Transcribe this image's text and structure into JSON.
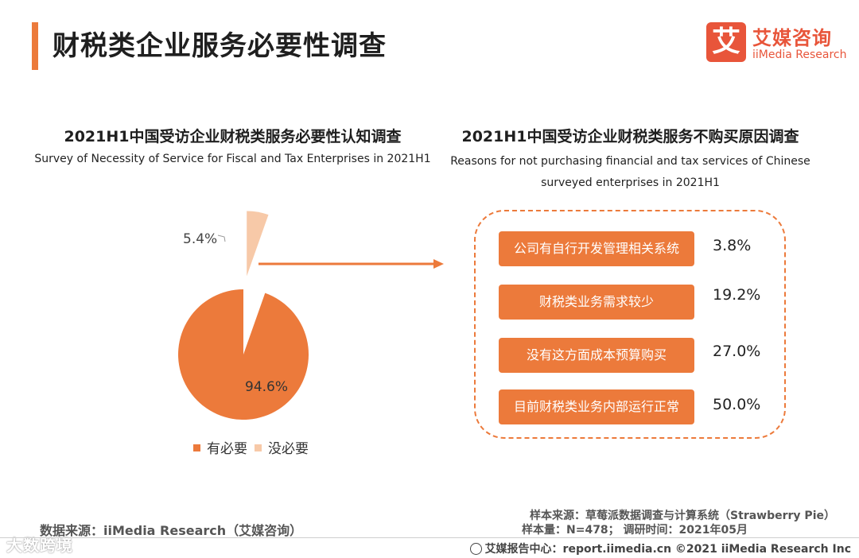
{
  "header": {
    "title": "财税类企业服务必要性调查",
    "logo_mark": "艾",
    "logo_cn": "艾媒咨询",
    "logo_en": "iiMedia Research"
  },
  "colors": {
    "accent": "#ec7a3b",
    "light": "#f7c9a8",
    "logo": "#e8553a"
  },
  "chart_data": [
    {
      "type": "pie",
      "title": "2021H1中国受访企业财税类服务必要性认知调查",
      "subtitle": "Survey of Necessity of Service for Fiscal and Tax Enterprises in 2021H1",
      "slices": [
        {
          "label": "有必要",
          "value": 94.6,
          "display": "94.6%",
          "color": "#ec7a3b"
        },
        {
          "label": "没必要",
          "value": 5.4,
          "display": "5.4%",
          "color": "#f7c9a8"
        }
      ],
      "legend_position": "bottom"
    },
    {
      "type": "table",
      "title": "2021H1中国受访企业财税类服务不购买原因调查",
      "subtitle_line1": "Reasons for not purchasing financial and tax services of Chinese",
      "subtitle_line2": "surveyed enterprises in 2021H1",
      "rows": [
        {
          "label": "公司有自行开发管理相关系统",
          "value": 3.8,
          "display": "3.8%"
        },
        {
          "label": "财税类业务需求较少",
          "value": 19.2,
          "display": "19.2%"
        },
        {
          "label": "没有这方面成本预算购买",
          "value": 27.0,
          "display": "27.0%"
        },
        {
          "label": "目前财税类业务内部运行正常",
          "value": 50.0,
          "display": "50.0%"
        }
      ]
    }
  ],
  "sources": {
    "left": "数据来源：iiMedia Research（艾媒咨询）",
    "sample_source": "样本来源：草莓派数据调查与计算系统（Strawberry  Pie）",
    "sample_size": "样本量：N=478；  调研时间：2021年05月",
    "watermark": "大数跨境",
    "footer": "艾媒报告中心：report.iimedia.cn   ©2021  iiMedia Research  Inc"
  }
}
